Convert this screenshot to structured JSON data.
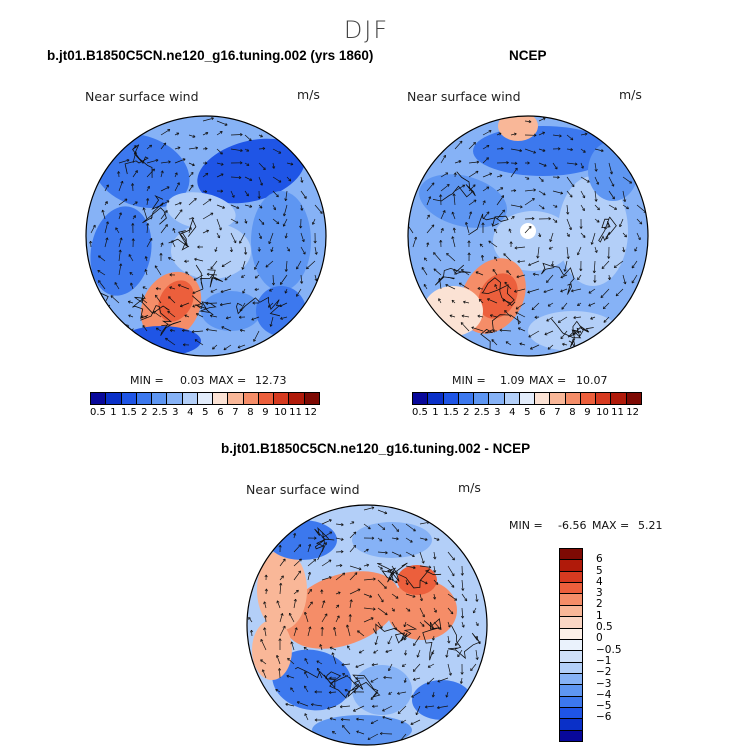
{
  "season_title": "DJF",
  "panels": [
    {
      "id": "model",
      "title": "b.jt01.B1850C5CN.ne120_g16.tuning.002 (yrs 1860)",
      "variable": "Near surface wind",
      "units": "m/s",
      "min_label": "MIN =",
      "min_value": "0.03",
      "max_label": "MAX =",
      "max_value": "12.73"
    },
    {
      "id": "ncep",
      "title": "NCEP",
      "variable": "Near surface wind",
      "units": "m/s",
      "min_label": "MIN =",
      "min_value": "1.09",
      "max_label": "MAX =",
      "max_value": "10.07"
    },
    {
      "id": "diff",
      "title": "b.jt01.B1850C5CN.ne120_g16.tuning.002 - NCEP",
      "variable": "Near surface wind",
      "units": "m/s",
      "min_label": "MIN =",
      "min_value": "-6.56",
      "max_label": "MAX =",
      "max_value": "5.21"
    }
  ],
  "abs_colorbar": {
    "colors": [
      "#08089a",
      "#0a30c8",
      "#1f55e6",
      "#3c78ee",
      "#5e96f2",
      "#86b2f6",
      "#b3cff8",
      "#e2ecfb",
      "#fbe2d4",
      "#f9b798",
      "#f58d68",
      "#ec5f3c",
      "#d63a20",
      "#b01a0a",
      "#7e0a04"
    ],
    "labels": [
      "0.5",
      "1",
      "1.5",
      "2",
      "2.5",
      "3",
      "4",
      "5",
      "6",
      "7",
      "8",
      "9",
      "10",
      "11",
      "12"
    ]
  },
  "diff_colorbar": {
    "colors": [
      "#7e0a04",
      "#b01a0a",
      "#d63a20",
      "#ec5f3c",
      "#f58d68",
      "#f9b798",
      "#fbd6c4",
      "#fdf0e8",
      "#eaf2fc",
      "#cfe0f9",
      "#b3cff8",
      "#86b2f6",
      "#5e96f2",
      "#3c78ee",
      "#1f55e6",
      "#0a30c8",
      "#08089a"
    ],
    "labels": [
      "6",
      "5",
      "4",
      "3",
      "2",
      "1",
      "0.5",
      "0",
      "−0.5",
      "−1",
      "−2",
      "−3",
      "−4",
      "−5",
      "−6"
    ]
  }
}
